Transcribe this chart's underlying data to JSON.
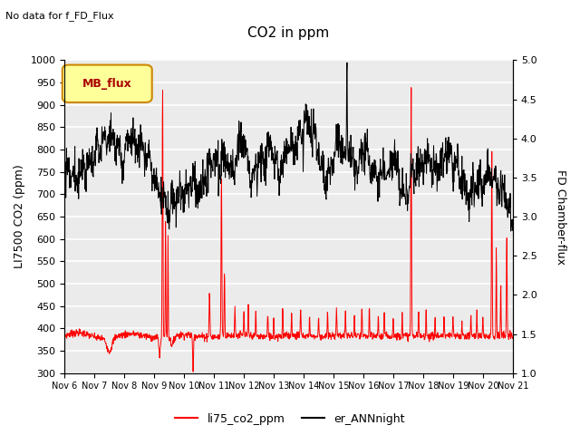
{
  "title": "CO2 in ppm",
  "subtitle": "No data for f_FD_Flux",
  "ylabel_left": "LI7500 CO2 (ppm)",
  "ylabel_right": "FD Chamber-flux",
  "ylim_left": [
    300,
    1000
  ],
  "ylim_right": [
    1.0,
    5.0
  ],
  "yticks_left": [
    300,
    350,
    400,
    450,
    500,
    550,
    600,
    650,
    700,
    750,
    800,
    850,
    900,
    950,
    1000
  ],
  "yticks_right": [
    1.0,
    1.5,
    2.0,
    2.5,
    3.0,
    3.5,
    4.0,
    4.5,
    5.0
  ],
  "xtick_labels": [
    "Nov 6",
    "Nov 7",
    "Nov 8",
    "Nov 9",
    "Nov 10",
    "Nov 11",
    "Nov 12",
    "Nov 13",
    "Nov 14",
    "Nov 15",
    "Nov 16",
    "Nov 17",
    "Nov 18",
    "Nov 19",
    "Nov 20",
    "Nov 21"
  ],
  "legend_entries": [
    "li75_co2_ppm",
    "er_ANNnight"
  ],
  "legend_colors": [
    "red",
    "black"
  ],
  "line1_color": "red",
  "line2_color": "black",
  "mb_flux_box_color": "#ffff99",
  "mb_flux_text_color": "#aa0000",
  "mb_flux_border_color": "#cc8800",
  "background_color": "#ebebeb",
  "grid_color": "white",
  "title_fontsize": 11,
  "label_fontsize": 9,
  "tick_fontsize": 8
}
